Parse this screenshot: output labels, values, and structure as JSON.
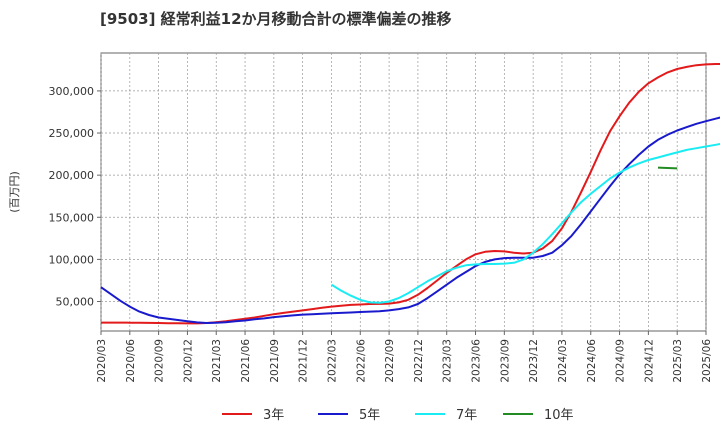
{
  "chart_data": {
    "type": "line",
    "title": "[9503]  経常利益12か月移動合計の標準偏差の推移",
    "ylabel": "(百万円)",
    "xlabel": "",
    "ylim": [
      15000,
      345000
    ],
    "y_ticks": [
      50000,
      100000,
      150000,
      200000,
      250000,
      300000
    ],
    "y_tick_labels": [
      "50,000",
      "100,000",
      "150,000",
      "200,000",
      "250,000",
      "300,000"
    ],
    "x_tick_labels": [
      "2020/03",
      "2020/06",
      "2020/09",
      "2020/12",
      "2021/03",
      "2021/06",
      "2021/09",
      "2021/12",
      "2022/03",
      "2022/06",
      "2022/09",
      "2022/12",
      "2023/03",
      "2023/06",
      "2023/09",
      "2023/12",
      "2024/03",
      "2024/06",
      "2024/09",
      "2024/12",
      "2025/03",
      "2025/06"
    ],
    "grid": true,
    "legend_position": "bottom",
    "series": [
      {
        "name": "3年",
        "color": "#e31a1c",
        "start": "2020/03",
        "values": [
          25000,
          25000,
          25000,
          24800,
          24700,
          24600,
          24500,
          24300,
          24200,
          24000,
          24000,
          24500,
          25500,
          26500,
          28000,
          29500,
          31000,
          33000,
          35000,
          36500,
          38000,
          39500,
          41000,
          42500,
          44000,
          45000,
          46000,
          46500,
          47000,
          47200,
          47500,
          49000,
          52000,
          58000,
          66000,
          75000,
          84000,
          92000,
          100000,
          106000,
          109000,
          110000,
          109500,
          108000,
          107000,
          108000,
          113000,
          122000,
          137000,
          157000,
          180000,
          204000,
          229000,
          252000,
          270000,
          286000,
          299000,
          309000,
          316000,
          322000,
          326000,
          328500,
          330500,
          331500,
          332000,
          332000,
          331500,
          331000,
          330000
        ]
      },
      {
        "name": "5年",
        "color": "#1a1acd",
        "start": "2020/03",
        "values": [
          67000,
          59000,
          51000,
          44000,
          38000,
          34000,
          31000,
          29500,
          28000,
          26500,
          25200,
          24500,
          24800,
          25500,
          26500,
          27500,
          29000,
          30000,
          31500,
          32500,
          33500,
          34500,
          35000,
          35500,
          36000,
          36500,
          37000,
          37500,
          38000,
          38500,
          39500,
          41000,
          43000,
          47000,
          54000,
          62000,
          70000,
          78000,
          85000,
          92000,
          97000,
          100000,
          101500,
          102000,
          102000,
          102000,
          104000,
          108000,
          117000,
          128000,
          142000,
          157000,
          172000,
          187000,
          201000,
          213000,
          224000,
          234000,
          242000,
          248000,
          253000,
          257000,
          261000,
          264000,
          267000,
          270000,
          273000,
          275000,
          277000
        ]
      },
      {
        "name": "7年",
        "color": "#19ecf2",
        "start": "2022/03",
        "values": [
          70000,
          63000,
          57000,
          52000,
          49000,
          48500,
          50000,
          54000,
          60000,
          67000,
          74000,
          80000,
          86000,
          90000,
          93000,
          94000,
          94500,
          94500,
          95000,
          96000,
          100000,
          108000,
          118000,
          130000,
          143000,
          156000,
          168000,
          178000,
          187000,
          196000,
          203000,
          209000,
          214000,
          218000,
          221000,
          224000,
          227000,
          230000,
          232000,
          234000,
          236000,
          238000
        ]
      },
      {
        "name": "10年",
        "color": "#238b23",
        "start": "2025/01",
        "values": [
          209000,
          208500,
          208000
        ]
      }
    ]
  }
}
